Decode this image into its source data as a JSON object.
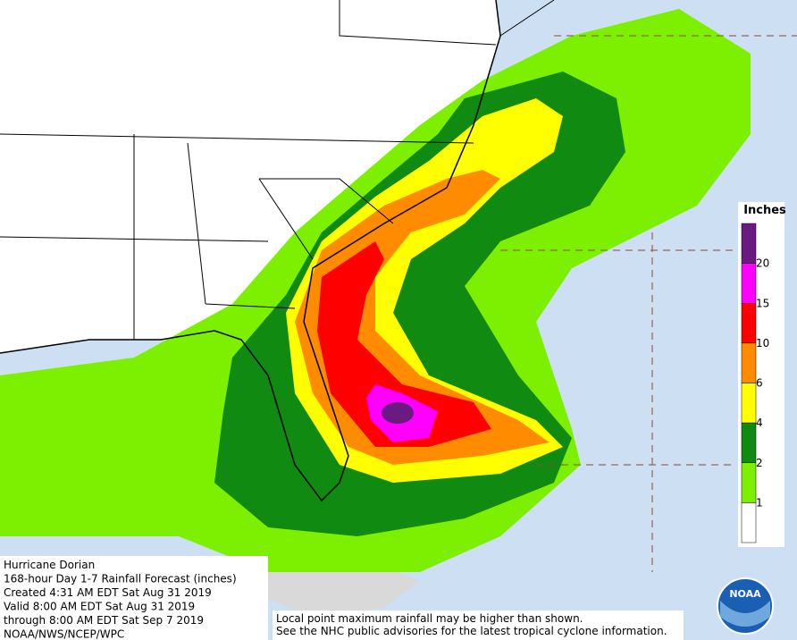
{
  "caption": {
    "lines": [
      "Hurricane Dorian",
      "168-hour Day 1-7 Rainfall Forecast (inches)",
      "Created 4:31 AM EDT Sat Aug 31 2019",
      "Valid 8:00 AM EDT Sat Aug 31 2019",
      "through 8:00 AM EDT Sat Sep 7 2019",
      "NOAA/NWS/NCEP/WPC"
    ]
  },
  "disclaimer": {
    "lines": [
      "Local point maximum rainfall may be higher than shown.",
      "See the NHC public advisories for the latest tropical cyclone information."
    ]
  },
  "legend": {
    "title": "Inches",
    "labels": [
      20,
      15,
      10,
      6,
      4,
      2,
      1
    ],
    "colors": [
      "#6a1a80",
      "#ff00ff",
      "#ff0000",
      "#ff8c00",
      "#ffff00",
      "#118a11",
      "#7cf000",
      "#ffffff"
    ]
  },
  "logo": {
    "text": "NOAA"
  }
}
